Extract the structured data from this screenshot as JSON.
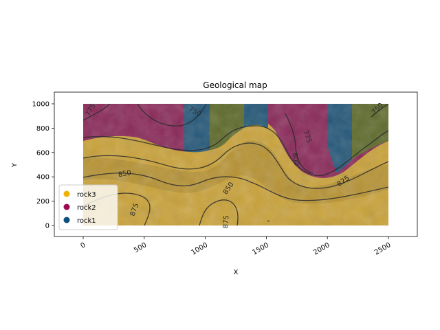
{
  "title": "Geological map",
  "xlabel": "X",
  "ylabel": "Y",
  "colors": {
    "rock3": "#f0b200",
    "rock2": "#9c0b4f",
    "rock1": "#0b4f7c",
    "olive": "#5d6a1a",
    "contour": "#2a2a2a"
  },
  "chart_data": {
    "type": "heatmap",
    "title": "Geological map",
    "xlabel": "X",
    "ylabel": "Y",
    "xlim": [
      -230,
      2730
    ],
    "ylim": [
      -90,
      1090
    ],
    "xticks": [
      0,
      500,
      1000,
      1500,
      2000,
      2500
    ],
    "yticks": [
      0,
      200,
      400,
      600,
      800,
      1000
    ],
    "xtick_labels": [
      "0",
      "500",
      "1000",
      "1500",
      "2000",
      "2500"
    ],
    "ytick_labels": [
      "0",
      "200",
      "400",
      "600",
      "800",
      "1000"
    ],
    "legend": {
      "placement": "lower-left",
      "entries": [
        {
          "name": "rock3",
          "color": "#f0b200"
        },
        {
          "name": "rock2",
          "color": "#9c0b4f"
        },
        {
          "name": "rock1",
          "color": "#0b4f7c"
        }
      ]
    },
    "contour_labels": [
      {
        "text": "775",
        "x": 60,
        "y": 950
      },
      {
        "text": "750",
        "x": 915,
        "y": 935
      },
      {
        "text": "775",
        "x": 1835,
        "y": 730
      },
      {
        "text": "800",
        "x": 1740,
        "y": 545
      },
      {
        "text": "750",
        "x": 2410,
        "y": 960
      },
      {
        "text": "850",
        "x": 340,
        "y": 425
      },
      {
        "text": "850",
        "x": 1190,
        "y": 305
      },
      {
        "text": "825",
        "x": 2130,
        "y": 365
      },
      {
        "text": "875",
        "x": 420,
        "y": 130
      },
      {
        "text": "875",
        "x": 1170,
        "y": 30
      }
    ]
  }
}
